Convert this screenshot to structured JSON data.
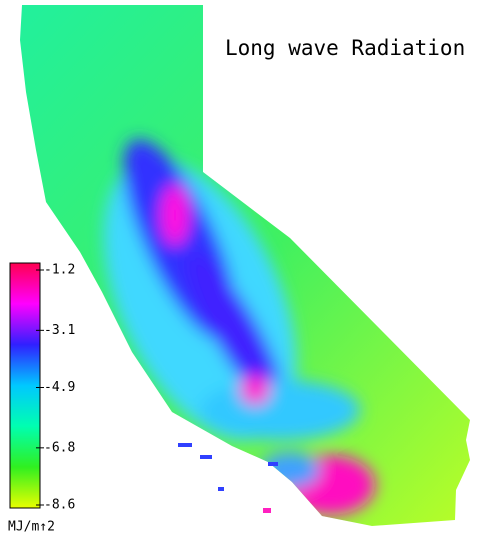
{
  "title": "Long wave Radiation",
  "colorbar": {
    "lim": [
      -8.6,
      -1.2
    ],
    "ticks": [
      -1.2,
      -3.1,
      -4.9,
      -6.8,
      -8.6
    ],
    "unit": "MJ/m↑2",
    "colors": [
      "#ff0050",
      "#ff00ff",
      "#3020ff",
      "#00c8ff",
      "#00ffb0",
      "#30f020",
      "#e8ff00"
    ]
  }
}
